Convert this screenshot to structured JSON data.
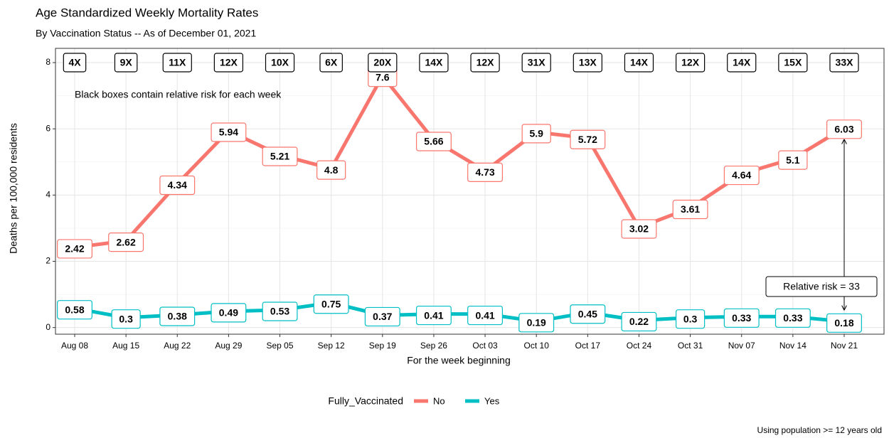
{
  "chart_data": {
    "type": "line",
    "title": "Age Standardized Weekly Mortality Rates",
    "subtitle": "By Vaccination Status -- As of December 01, 2021",
    "x_label": "For the week beginning",
    "y_label": "Deaths per 100,000 residents",
    "categories": [
      "Aug 08",
      "Aug 15",
      "Aug 22",
      "Aug 29",
      "Sep 05",
      "Sep 12",
      "Sep 19",
      "Sep 26",
      "Oct 03",
      "Oct 10",
      "Oct 17",
      "Oct 24",
      "Oct 31",
      "Nov 07",
      "Nov 14",
      "Nov 21"
    ],
    "series": [
      {
        "name": "No",
        "color": "#F8766D",
        "values": [
          2.42,
          2.62,
          4.34,
          5.94,
          5.21,
          4.8,
          7.6,
          5.66,
          4.73,
          5.9,
          5.72,
          3.02,
          3.61,
          4.64,
          5.1,
          6.03
        ]
      },
      {
        "name": "Yes",
        "color": "#00BFC4",
        "values": [
          0.58,
          0.3,
          0.38,
          0.49,
          0.53,
          0.75,
          0.37,
          0.41,
          0.41,
          0.19,
          0.45,
          0.22,
          0.3,
          0.33,
          0.33,
          0.18
        ]
      }
    ],
    "risk_labels": [
      "4X",
      "9X",
      "11X",
      "12X",
      "10X",
      "6X",
      "20X",
      "14X",
      "12X",
      "31X",
      "13X",
      "14X",
      "12X",
      "14X",
      "15X",
      "33X"
    ],
    "risk_note": "Black boxes contain relative risk for each week",
    "risk_callout": "Relative risk = 33",
    "legend_title": "Fully_Vaccinated",
    "caption": "Using population >= 12 years old",
    "ylim": [
      -0.2,
      8.43
    ],
    "yticks": [
      0,
      2,
      4,
      6,
      8
    ],
    "grid": true
  }
}
